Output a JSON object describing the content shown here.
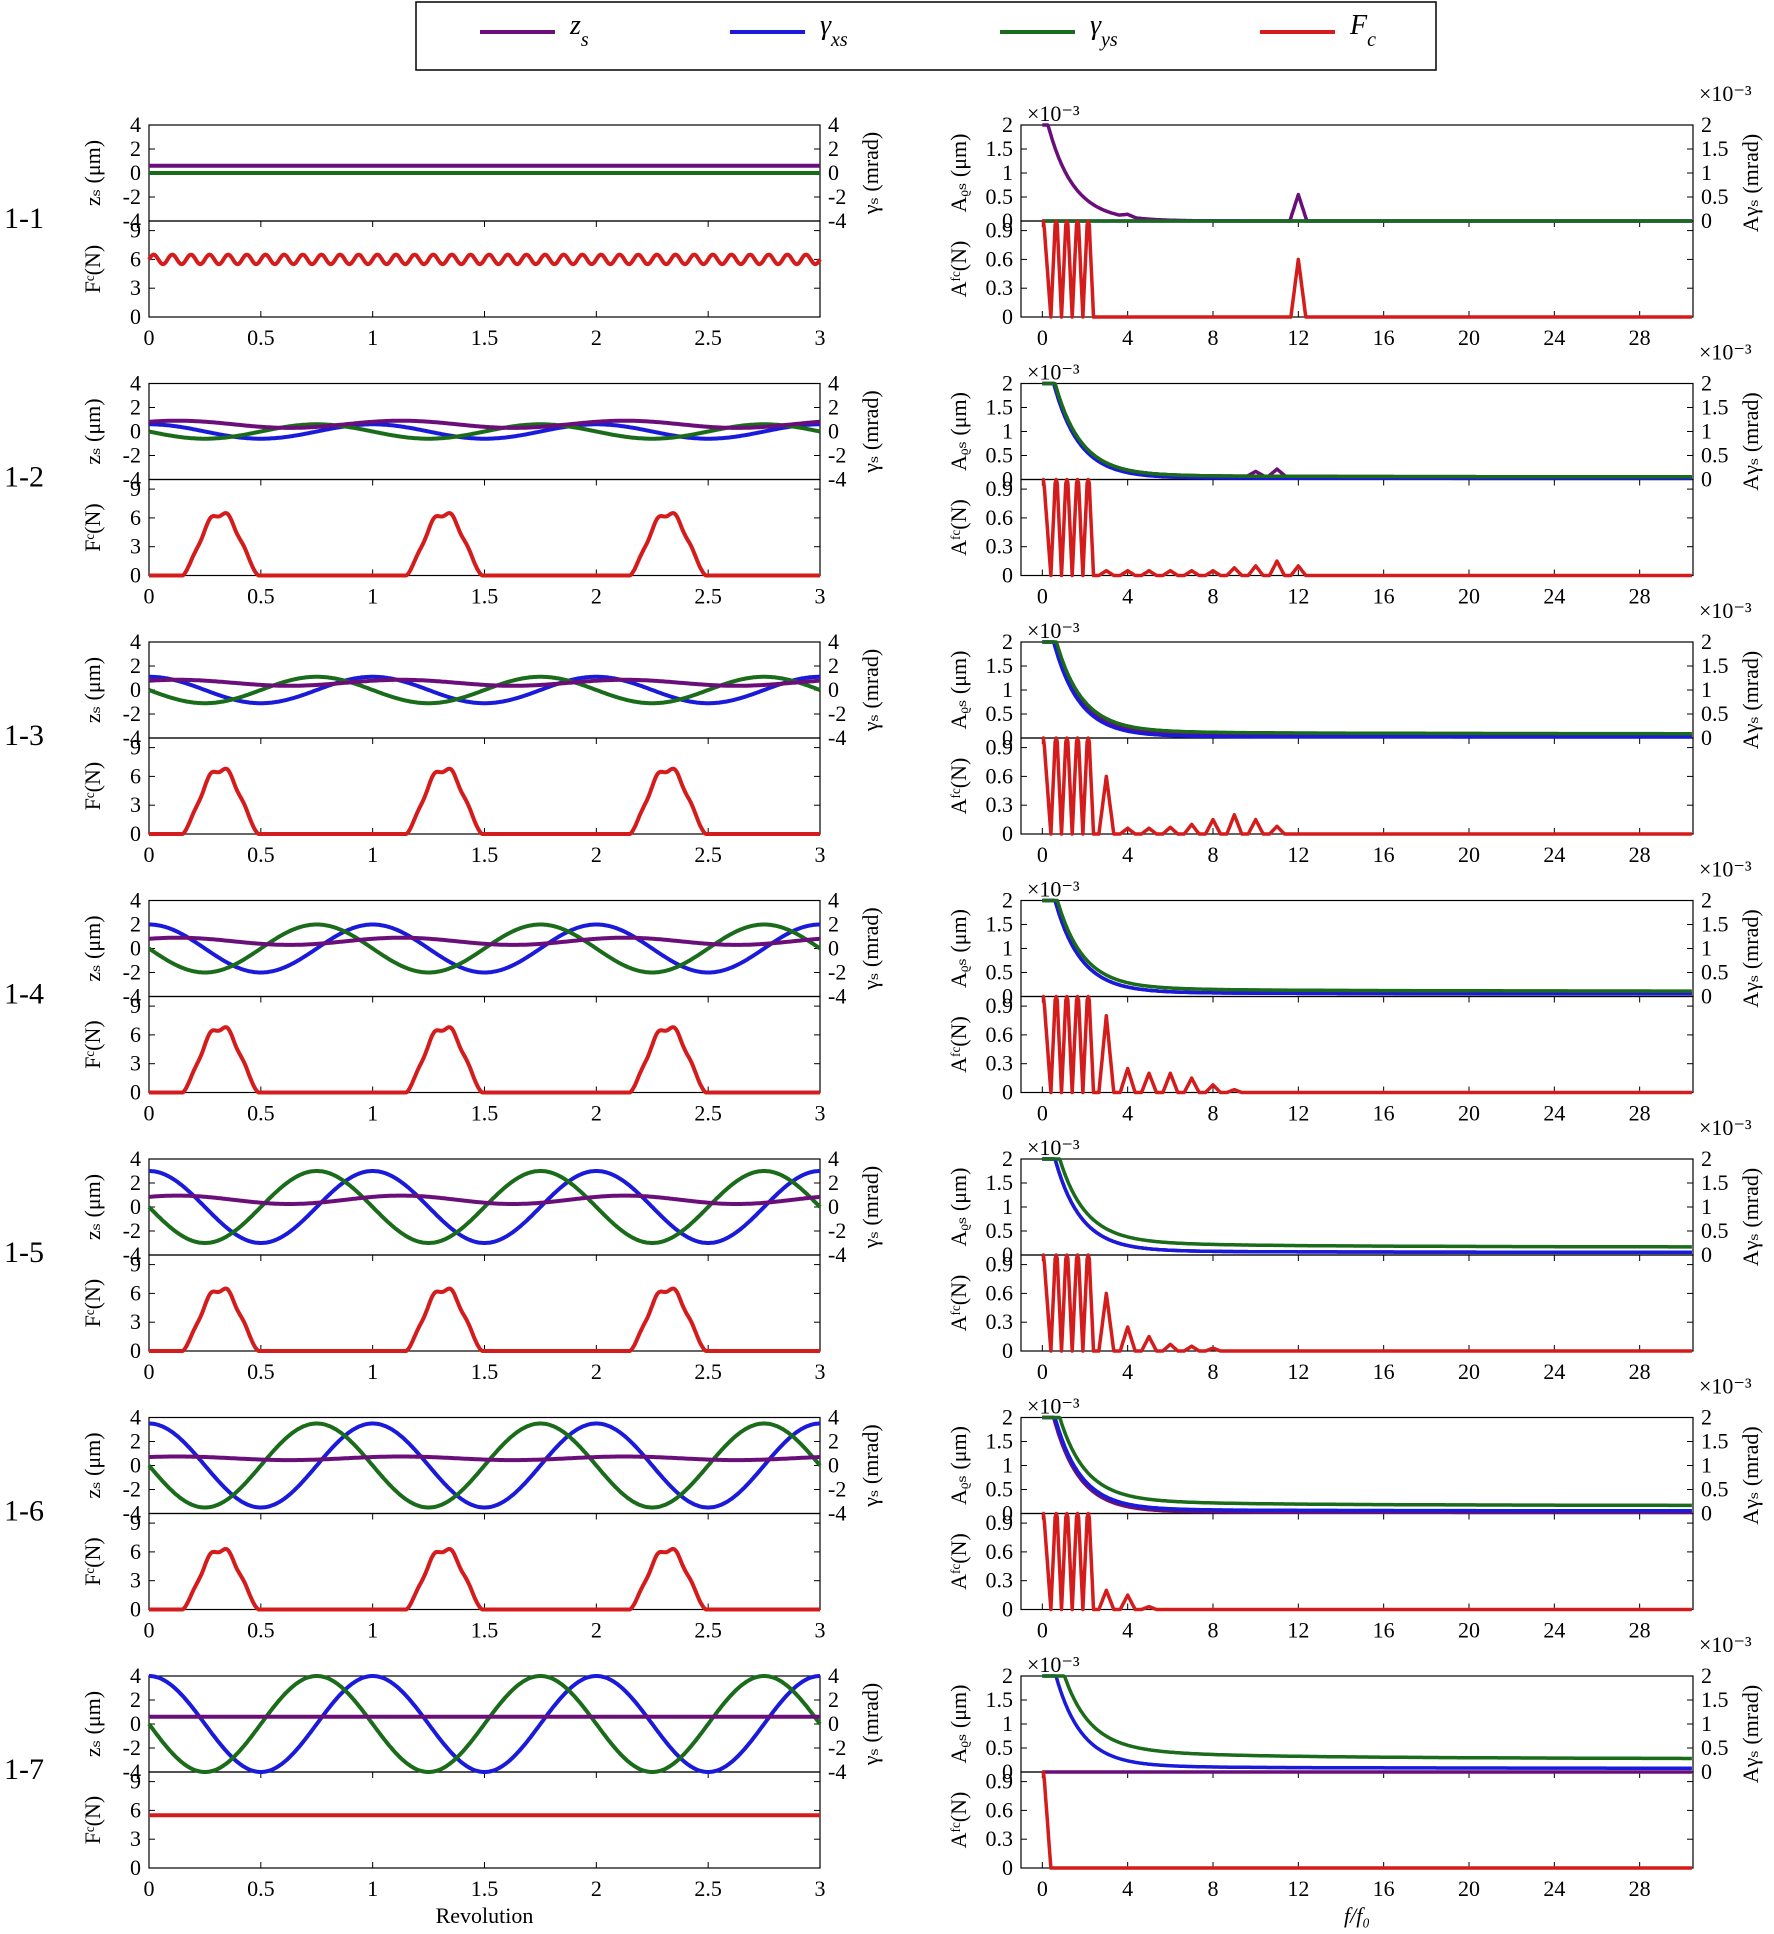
{
  "legend": [
    {
      "key": "zs",
      "symbol": "z",
      "sub": "s",
      "color": "#6a0f7a"
    },
    {
      "key": "gxs",
      "symbol": "γ",
      "sub": "xs",
      "color": "#1a1adb"
    },
    {
      "key": "gys",
      "symbol": "γ",
      "sub": "ys",
      "color": "#1a6b1a"
    },
    {
      "key": "fc",
      "symbol": "F",
      "sub": "c",
      "color": "#d41c1c"
    }
  ],
  "axis_labels": {
    "left_top": "zₛ (μm)",
    "left_top_right": "γₛ (mrad)",
    "left_bottom": "Fᶜ(N)",
    "right_top": "Aᵨₛ (μm)",
    "right_top_right": "Aγₛ (mrad)",
    "right_bottom": "Aᶠᶜ(N)",
    "time_x": "Revolution",
    "freq_x": "f / f₀",
    "exponent": "×10⁻³"
  },
  "chart_data": {
    "type": "line",
    "title": "",
    "rows": [
      "1-1",
      "1-2",
      "1-3",
      "1-4",
      "1-5",
      "1-6",
      "1-7"
    ],
    "time_domain": {
      "xlabel": "Revolution",
      "xlim": [
        0,
        3
      ],
      "xticks": [
        "0",
        "0.5",
        "1",
        "1.5",
        "2",
        "2.5",
        "3"
      ],
      "motion": {
        "ylabel_left": "z_s (μm)",
        "ylabel_right": "γ_s (mrad)",
        "ylim": [
          -4,
          4
        ],
        "yticks": [
          "4",
          "2",
          "0",
          "-2",
          "-4"
        ],
        "zs_offset": [
          0.6,
          0.6,
          0.6,
          0.6,
          0.6,
          0.6,
          0.6
        ],
        "zs_amplitude": [
          0.0,
          0.3,
          0.25,
          0.3,
          0.35,
          0.15,
          0.0
        ],
        "gamma_amplitude": [
          0.0,
          0.6,
          1.1,
          2.0,
          3.0,
          3.5,
          4.0
        ]
      },
      "force": {
        "ylabel": "F_c(N)",
        "ylim": [
          0,
          10
        ],
        "yticks": [
          "9",
          "6",
          "3",
          "0"
        ],
        "peak_N": [
          6.0,
          6.5,
          6.8,
          6.8,
          6.5,
          6.3,
          5.5
        ],
        "pattern": [
          "constant-ripple",
          "pulse",
          "pulse",
          "pulse",
          "pulse",
          "pulse",
          "constant"
        ]
      }
    },
    "frequency_domain": {
      "xlabel": "f/f₀",
      "xlim": [
        -1,
        30.5
      ],
      "xticks": [
        "0",
        "4",
        "8",
        "12",
        "16",
        "20",
        "24",
        "28"
      ],
      "motion": {
        "ylabel_left": "A_zs (μm)",
        "ylabel_right": "A_γs (mrad)",
        "scale": "×10⁻³",
        "ylim": [
          0,
          2
        ],
        "yticks": [
          "2",
          "1.5",
          "1",
          "0.5",
          "0"
        ],
        "tail_zs": [
          0.0,
          0.05,
          0.05,
          0.05,
          0.05,
          0.02,
          0.0
        ],
        "tail_gxs": [
          0.0,
          0.02,
          0.02,
          0.05,
          0.05,
          0.05,
          0.07
        ],
        "tail_gys": [
          0.0,
          0.05,
          0.08,
          0.1,
          0.15,
          0.15,
          0.25
        ],
        "spikes_zs": [
          [
            4,
            0.05
          ],
          [
            12,
            0.55
          ]
        ]
      },
      "force": {
        "ylabel": "A_Fc(N)",
        "ylim": [
          0,
          1
        ],
        "yticks": [
          "0.9",
          "0.6",
          "0.3",
          "0"
        ],
        "harmonics_1_1": [
          [
            12,
            0.6
          ]
        ],
        "harmonics_1_2": [
          [
            3,
            0.05
          ],
          [
            4,
            0.05
          ],
          [
            5,
            0.05
          ],
          [
            6,
            0.05
          ],
          [
            7,
            0.05
          ],
          [
            8,
            0.05
          ],
          [
            9,
            0.08
          ],
          [
            10,
            0.1
          ],
          [
            11,
            0.15
          ],
          [
            12,
            0.1
          ]
        ],
        "harmonics_1_3": [
          [
            3,
            0.6
          ],
          [
            4,
            0.06
          ],
          [
            5,
            0.06
          ],
          [
            6,
            0.07
          ],
          [
            7,
            0.1
          ],
          [
            8,
            0.15
          ],
          [
            9,
            0.2
          ],
          [
            10,
            0.15
          ],
          [
            11,
            0.08
          ]
        ],
        "harmonics_1_4": [
          [
            3,
            0.8
          ],
          [
            4,
            0.25
          ],
          [
            5,
            0.2
          ],
          [
            6,
            0.2
          ],
          [
            7,
            0.15
          ],
          [
            8,
            0.08
          ],
          [
            9,
            0.03
          ]
        ],
        "harmonics_1_5": [
          [
            3,
            0.6
          ],
          [
            4,
            0.25
          ],
          [
            5,
            0.15
          ],
          [
            6,
            0.07
          ],
          [
            7,
            0.05
          ],
          [
            8,
            0.03
          ]
        ],
        "harmonics_1_6": [
          [
            3,
            0.2
          ],
          [
            4,
            0.15
          ],
          [
            5,
            0.03
          ]
        ]
      }
    }
  }
}
